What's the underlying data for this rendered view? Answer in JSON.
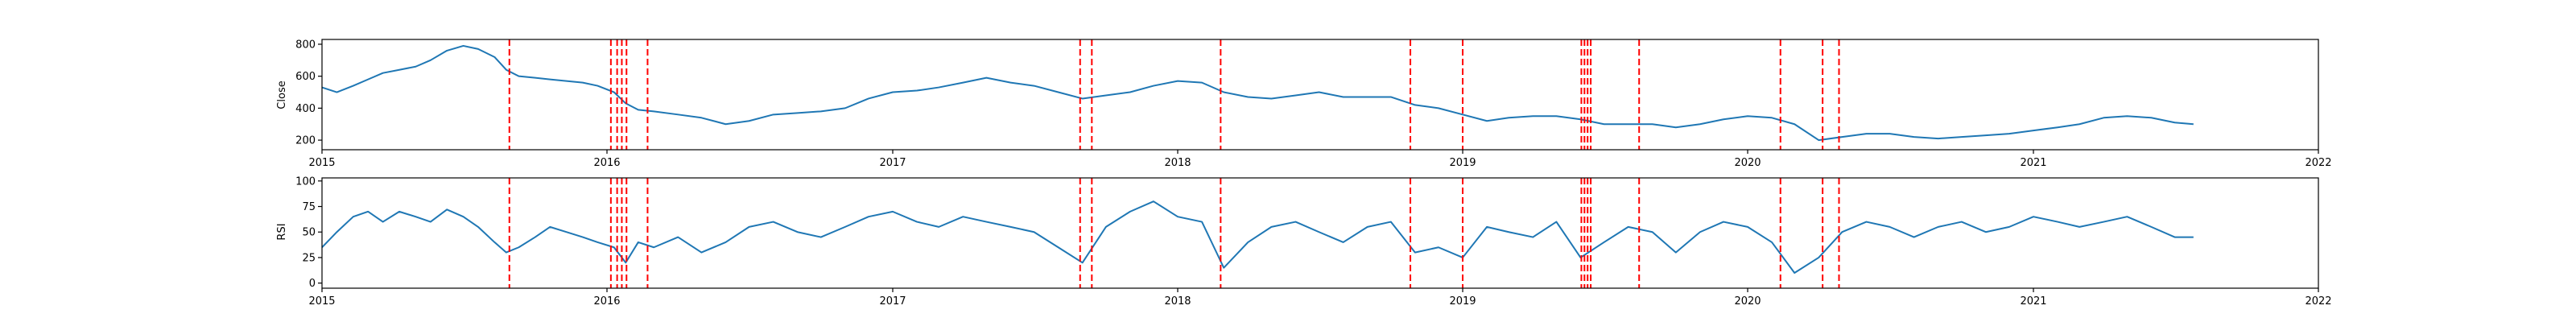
{
  "chart_data": [
    {
      "type": "line",
      "title": "",
      "xlabel": "",
      "ylabel": "Close",
      "xlim": [
        "2015-01-01",
        "2022-01-01"
      ],
      "ylim": [
        140,
        830
      ],
      "x_ticks": [
        "2015-01-01",
        "2016-01-01",
        "2017-01-01",
        "2018-01-01",
        "2019-01-01",
        "2020-01-01",
        "2021-01-01",
        "2022-01-01"
      ],
      "x_tick_labels": [
        "2015",
        "2016",
        "2017",
        "2018",
        "2019",
        "2020",
        "2021",
        "2022"
      ],
      "y_ticks": [
        200,
        400,
        600,
        800
      ],
      "y_tick_labels": [
        "200",
        "400",
        "600",
        "800"
      ],
      "grid": false,
      "line_color": "#1f77b4",
      "series": [
        {
          "x": [
            "2015-01-01",
            "2015-01-20",
            "2015-02-10",
            "2015-03-01",
            "2015-03-20",
            "2015-04-10",
            "2015-05-01",
            "2015-05-20",
            "2015-06-10",
            "2015-07-01",
            "2015-07-20",
            "2015-08-10",
            "2015-08-25",
            "2015-09-10",
            "2015-10-01",
            "2015-10-20",
            "2015-11-10",
            "2015-12-01",
            "2015-12-20",
            "2016-01-10",
            "2016-01-25",
            "2016-02-10",
            "2016-03-01",
            "2016-04-01",
            "2016-05-01",
            "2016-06-01",
            "2016-07-01",
            "2016-08-01",
            "2016-09-01",
            "2016-10-01",
            "2016-11-01",
            "2016-12-01",
            "2017-01-01",
            "2017-02-01",
            "2017-03-01",
            "2017-04-01",
            "2017-05-01",
            "2017-06-01",
            "2017-07-01",
            "2017-08-01",
            "2017-09-01",
            "2017-10-01",
            "2017-11-01",
            "2017-12-01",
            "2018-01-01",
            "2018-02-01",
            "2018-03-01",
            "2018-04-01",
            "2018-05-01",
            "2018-06-01",
            "2018-07-01",
            "2018-08-01",
            "2018-09-01",
            "2018-10-01",
            "2018-11-01",
            "2018-12-01",
            "2019-01-01",
            "2019-02-01",
            "2019-03-01",
            "2019-04-01",
            "2019-05-01",
            "2019-06-01",
            "2019-07-01",
            "2019-08-01",
            "2019-09-01",
            "2019-10-01",
            "2019-11-01",
            "2019-12-01",
            "2020-01-01",
            "2020-02-01",
            "2020-03-01",
            "2020-04-01",
            "2020-05-01",
            "2020-06-01",
            "2020-07-01",
            "2020-08-01",
            "2020-09-01",
            "2020-10-01",
            "2020-11-01",
            "2020-12-01",
            "2021-01-01",
            "2021-02-01",
            "2021-03-01",
            "2021-04-01",
            "2021-05-01",
            "2021-06-01",
            "2021-07-01",
            "2021-07-25"
          ],
          "y": [
            530,
            500,
            540,
            580,
            620,
            640,
            660,
            700,
            760,
            790,
            770,
            720,
            640,
            600,
            590,
            580,
            570,
            560,
            540,
            500,
            430,
            390,
            380,
            360,
            340,
            300,
            320,
            360,
            370,
            380,
            400,
            460,
            500,
            510,
            530,
            560,
            590,
            560,
            540,
            500,
            460,
            480,
            500,
            540,
            570,
            560,
            500,
            470,
            460,
            480,
            500,
            470,
            470,
            470,
            420,
            400,
            360,
            320,
            340,
            350,
            350,
            330,
            300,
            300,
            300,
            280,
            300,
            330,
            350,
            340,
            300,
            200,
            220,
            240,
            240,
            220,
            210,
            220,
            230,
            240,
            260,
            280,
            300,
            340,
            350,
            340,
            310,
            300
          ]
        }
      ]
    },
    {
      "type": "line",
      "title": "",
      "xlabel": "",
      "ylabel": "RSI",
      "xlim": [
        "2015-01-01",
        "2022-01-01"
      ],
      "ylim": [
        -5,
        103
      ],
      "x_ticks": [
        "2015-01-01",
        "2016-01-01",
        "2017-01-01",
        "2018-01-01",
        "2019-01-01",
        "2020-01-01",
        "2021-01-01",
        "2022-01-01"
      ],
      "x_tick_labels": [
        "2015",
        "2016",
        "2017",
        "2018",
        "2019",
        "2020",
        "2021",
        "2022"
      ],
      "y_ticks": [
        0,
        25,
        50,
        75,
        100
      ],
      "y_tick_labels": [
        "0",
        "25",
        "50",
        "75",
        "100"
      ],
      "grid": false,
      "line_color": "#1f77b4",
      "series": [
        {
          "x": [
            "2015-01-01",
            "2015-01-20",
            "2015-02-10",
            "2015-03-01",
            "2015-03-20",
            "2015-04-10",
            "2015-05-01",
            "2015-05-20",
            "2015-06-10",
            "2015-07-01",
            "2015-07-20",
            "2015-08-10",
            "2015-08-25",
            "2015-09-10",
            "2015-10-01",
            "2015-10-20",
            "2015-11-10",
            "2015-12-01",
            "2015-12-20",
            "2016-01-10",
            "2016-01-25",
            "2016-02-10",
            "2016-03-01",
            "2016-04-01",
            "2016-05-01",
            "2016-06-01",
            "2016-07-01",
            "2016-08-01",
            "2016-09-01",
            "2016-10-01",
            "2016-11-01",
            "2016-12-01",
            "2017-01-01",
            "2017-02-01",
            "2017-03-01",
            "2017-04-01",
            "2017-05-01",
            "2017-06-01",
            "2017-07-01",
            "2017-08-01",
            "2017-09-01",
            "2017-10-01",
            "2017-11-01",
            "2017-12-01",
            "2018-01-01",
            "2018-02-01",
            "2018-03-01",
            "2018-04-01",
            "2018-05-01",
            "2018-06-01",
            "2018-07-01",
            "2018-08-01",
            "2018-09-01",
            "2018-10-01",
            "2018-11-01",
            "2018-12-01",
            "2019-01-01",
            "2019-02-01",
            "2019-03-01",
            "2019-04-01",
            "2019-05-01",
            "2019-06-01",
            "2019-07-01",
            "2019-08-01",
            "2019-09-01",
            "2019-10-01",
            "2019-11-01",
            "2019-12-01",
            "2020-01-01",
            "2020-02-01",
            "2020-03-01",
            "2020-04-01",
            "2020-05-01",
            "2020-06-01",
            "2020-07-01",
            "2020-08-01",
            "2020-09-01",
            "2020-10-01",
            "2020-11-01",
            "2020-12-01",
            "2021-01-01",
            "2021-02-01",
            "2021-03-01",
            "2021-04-01",
            "2021-05-01",
            "2021-06-01",
            "2021-07-01",
            "2021-07-25"
          ],
          "y": [
            35,
            50,
            65,
            70,
            60,
            70,
            65,
            60,
            72,
            65,
            55,
            40,
            30,
            35,
            45,
            55,
            50,
            45,
            40,
            35,
            20,
            40,
            35,
            45,
            30,
            40,
            55,
            60,
            50,
            45,
            55,
            65,
            70,
            60,
            55,
            65,
            60,
            55,
            50,
            35,
            20,
            55,
            70,
            80,
            65,
            60,
            15,
            40,
            55,
            60,
            50,
            40,
            55,
            60,
            30,
            35,
            25,
            55,
            50,
            45,
            60,
            25,
            40,
            55,
            50,
            30,
            50,
            60,
            55,
            40,
            10,
            25,
            50,
            60,
            55,
            45,
            55,
            60,
            50,
            55,
            65,
            60,
            55,
            60,
            65,
            55,
            45,
            45
          ]
        }
      ]
    }
  ],
  "signal_dates": [
    "2015-08-29",
    "2016-01-06",
    "2016-01-14",
    "2016-01-20",
    "2016-01-26",
    "2016-02-22",
    "2017-08-29",
    "2017-09-13",
    "2018-02-25",
    "2018-10-26",
    "2019-01-01",
    "2019-06-02",
    "2019-06-06",
    "2019-06-10",
    "2019-06-14",
    "2019-08-15",
    "2020-02-12",
    "2020-04-06",
    "2020-04-27"
  ],
  "signal_color": "#ff0000"
}
